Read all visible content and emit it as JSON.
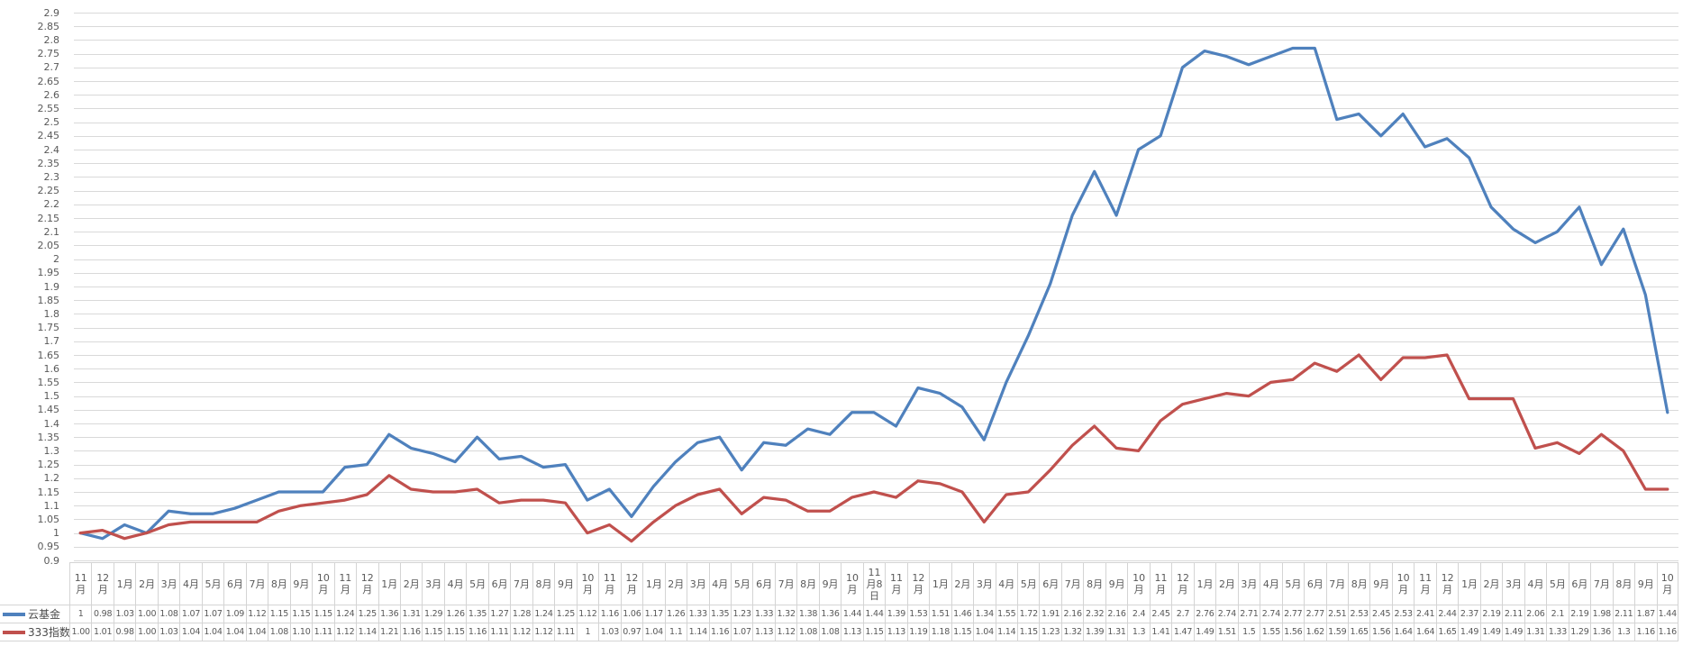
{
  "chart_data": {
    "type": "line",
    "title": "",
    "xlabel": "",
    "ylabel": "",
    "grid": true,
    "legend_position": "data-table-left",
    "y_axis": {
      "min": 0.9,
      "max": 2.9,
      "step": 0.05,
      "ticks": [
        "2.9",
        "2.85",
        "2.8",
        "2.75",
        "2.7",
        "2.65",
        "2.6",
        "2.55",
        "2.5",
        "2.45",
        "2.4",
        "2.35",
        "2.3",
        "2.25",
        "2.2",
        "2.15",
        "2.1",
        "2.05",
        "2",
        "1.95",
        "1.9",
        "1.85",
        "1.8",
        "1.75",
        "1.7",
        "1.65",
        "1.6",
        "1.55",
        "1.5",
        "1.45",
        "1.4",
        "1.35",
        "1.3",
        "1.25",
        "1.2",
        "1.15",
        "1.1",
        "1.05",
        "1",
        "0.95",
        "0.9"
      ]
    },
    "categories": [
      "11月",
      "12月",
      "1月",
      "2月",
      "3月",
      "4月",
      "5月",
      "6月",
      "7月",
      "8月",
      "9月",
      "10月",
      "11月",
      "12月",
      "1月",
      "2月",
      "3月",
      "4月",
      "5月",
      "6月",
      "7月",
      "8月",
      "9月",
      "10月",
      "11月",
      "12月",
      "1月",
      "2月",
      "3月",
      "4月",
      "5月",
      "6月",
      "7月",
      "8月",
      "9月",
      "10月",
      "11月8日",
      "11月",
      "12月",
      "1月",
      "2月",
      "3月",
      "4月",
      "5月",
      "6月",
      "7月",
      "8月",
      "9月",
      "10月",
      "11月",
      "12月",
      "1月",
      "2月",
      "3月",
      "4月",
      "5月",
      "6月",
      "7月",
      "8月",
      "9月",
      "10月",
      "11月",
      "12月",
      "1月",
      "2月",
      "3月",
      "4月",
      "5月",
      "6月",
      "7月",
      "8月",
      "9月",
      "10月"
    ],
    "series": [
      {
        "name": "云基金",
        "color": "#4F81BD",
        "values": [
          "1",
          "0.98",
          "1.03",
          "1.00",
          "1.08",
          "1.07",
          "1.07",
          "1.09",
          "1.12",
          "1.15",
          "1.15",
          "1.15",
          "1.24",
          "1.25",
          "1.36",
          "1.31",
          "1.29",
          "1.26",
          "1.35",
          "1.27",
          "1.28",
          "1.24",
          "1.25",
          "1.12",
          "1.16",
          "1.06",
          "1.17",
          "1.26",
          "1.33",
          "1.35",
          "1.23",
          "1.33",
          "1.32",
          "1.38",
          "1.36",
          "1.44",
          "1.44",
          "1.39",
          "1.53",
          "1.51",
          "1.46",
          "1.34",
          "1.55",
          "1.72",
          "1.91",
          "2.16",
          "2.32",
          "2.16",
          "2.4",
          "2.45",
          "2.7",
          "2.76",
          "2.74",
          "2.71",
          "2.74",
          "2.77",
          "2.77",
          "2.51",
          "2.53",
          "2.45",
          "2.53",
          "2.41",
          "2.44",
          "2.37",
          "2.19",
          "2.11",
          "2.06",
          "2.1",
          "2.19",
          "1.98",
          "2.11",
          "1.87",
          "1.44"
        ]
      },
      {
        "name": "333指数",
        "color": "#C0504D",
        "values": [
          "1.00",
          "1.01",
          "0.98",
          "1.00",
          "1.03",
          "1.04",
          "1.04",
          "1.04",
          "1.04",
          "1.08",
          "1.10",
          "1.11",
          "1.12",
          "1.14",
          "1.21",
          "1.16",
          "1.15",
          "1.15",
          "1.16",
          "1.11",
          "1.12",
          "1.12",
          "1.11",
          "1",
          "1.03",
          "0.97",
          "1.04",
          "1.1",
          "1.14",
          "1.16",
          "1.07",
          "1.13",
          "1.12",
          "1.08",
          "1.08",
          "1.13",
          "1.15",
          "1.13",
          "1.19",
          "1.18",
          "1.15",
          "1.04",
          "1.14",
          "1.15",
          "1.23",
          "1.32",
          "1.39",
          "1.31",
          "1.3",
          "1.41",
          "1.47",
          "1.49",
          "1.51",
          "1.5",
          "1.55",
          "1.56",
          "1.62",
          "1.59",
          "1.65",
          "1.56",
          "1.64",
          "1.64",
          "1.65",
          "1.49",
          "1.49",
          "1.49",
          "1.31",
          "1.33",
          "1.29",
          "1.36",
          "1.3",
          "1.16",
          "1.16"
        ]
      }
    ],
    "colors": {
      "gridline": "#D9D9D9",
      "table_border": "#D4D4D4",
      "axis_text": "#595959"
    }
  }
}
